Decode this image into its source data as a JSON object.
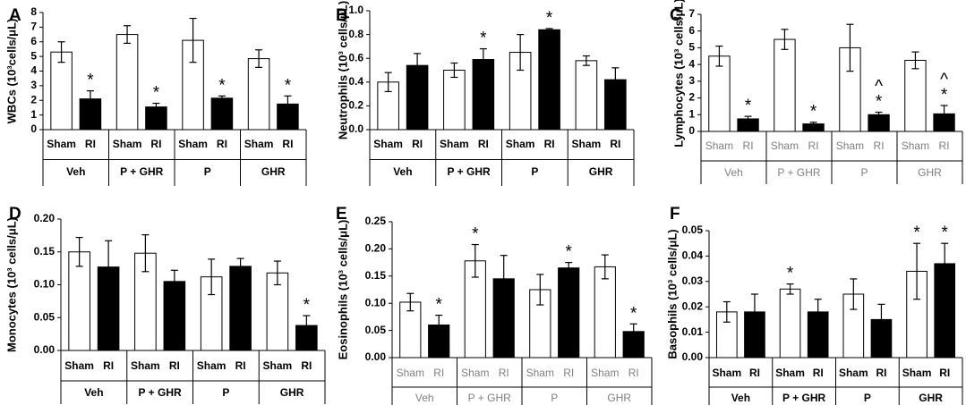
{
  "colors": {
    "sham": "#ffffff",
    "ri": "#000000",
    "stroke": "#000000",
    "grey_text": "#7f7f7f"
  },
  "chart_data": [
    {
      "panel": "A",
      "type": "bar",
      "ylabel": "WBCs (10³cells/μL)",
      "ylim": [
        0,
        8
      ],
      "yticks": [
        "0",
        "1",
        "2",
        "3",
        "4",
        "5",
        "6",
        "7",
        "8"
      ],
      "groups": [
        "Veh",
        "P + GHR",
        "P",
        "GHR"
      ],
      "subcategories": [
        "Sham",
        "RI"
      ],
      "series": [
        {
          "name": "Sham",
          "values": [
            5.3,
            6.5,
            6.1,
            4.85
          ],
          "errors": [
            0.7,
            0.6,
            1.5,
            0.6
          ],
          "sig": [
            "",
            "",
            "",
            ""
          ]
        },
        {
          "name": "RI",
          "values": [
            2.1,
            1.55,
            2.15,
            1.75
          ],
          "errors": [
            0.55,
            0.25,
            0.15,
            0.55
          ],
          "sig": [
            "*",
            "*",
            "*",
            "*"
          ]
        }
      ]
    },
    {
      "panel": "B",
      "type": "bar",
      "ylabel": "Neutrophils (10³ cells/μL)",
      "ylim": [
        0,
        1.0
      ],
      "yticks": [
        "0.0",
        "0.2",
        "0.4",
        "0.6",
        "0.8",
        "1.0"
      ],
      "groups": [
        "Veh",
        "P + GHR",
        "P",
        "GHR"
      ],
      "subcategories": [
        "Sham",
        "RI"
      ],
      "series": [
        {
          "name": "Sham",
          "values": [
            0.4,
            0.5,
            0.65,
            0.58
          ],
          "errors": [
            0.08,
            0.06,
            0.15,
            0.04
          ],
          "sig": [
            "",
            "",
            "",
            ""
          ]
        },
        {
          "name": "RI",
          "values": [
            0.54,
            0.59,
            0.84,
            0.42
          ],
          "errors": [
            0.1,
            0.09,
            0.01,
            0.1
          ],
          "sig": [
            "",
            "*",
            "*",
            ""
          ]
        }
      ]
    },
    {
      "panel": "C",
      "type": "bar",
      "ylabel": "Lymphocytes (10³ cells/μL)",
      "ylim": [
        0,
        7
      ],
      "yticks": [
        "0",
        "1",
        "2",
        "3",
        "4",
        "5",
        "6",
        "7"
      ],
      "groups": [
        "Veh",
        "P + GHR",
        "P",
        "GHR"
      ],
      "subcategories": [
        "Sham",
        "RI"
      ],
      "series": [
        {
          "name": "Sham",
          "values": [
            4.5,
            5.5,
            5.0,
            4.25
          ],
          "errors": [
            0.6,
            0.6,
            1.4,
            0.5
          ],
          "sig": [
            "",
            "",
            "",
            ""
          ]
        },
        {
          "name": "RI",
          "values": [
            0.75,
            0.45,
            1.0,
            1.05
          ],
          "errors": [
            0.15,
            0.1,
            0.15,
            0.5
          ],
          "sig": [
            "*",
            "*",
            "^\n*",
            "^\n*"
          ]
        }
      ]
    },
    {
      "panel": "D",
      "type": "bar",
      "ylabel": "Monocytes (10³ cells/μL)",
      "ylim": [
        0,
        0.2
      ],
      "yticks": [
        "0.00",
        "0.05",
        "0.10",
        "0.15",
        "0.20"
      ],
      "groups": [
        "Veh",
        "P + GHR",
        "P",
        "GHR"
      ],
      "subcategories": [
        "Sham",
        "RI"
      ],
      "series": [
        {
          "name": "Sham",
          "values": [
            0.15,
            0.148,
            0.112,
            0.118
          ],
          "errors": [
            0.022,
            0.028,
            0.027,
            0.018
          ],
          "sig": [
            "",
            "",
            "",
            ""
          ]
        },
        {
          "name": "RI",
          "values": [
            0.127,
            0.105,
            0.128,
            0.038
          ],
          "errors": [
            0.04,
            0.017,
            0.012,
            0.015
          ],
          "sig": [
            "",
            "",
            "",
            "*"
          ]
        }
      ]
    },
    {
      "panel": "E",
      "type": "bar",
      "ylabel": "Eosinophils (10³ cells/μL)",
      "ylim": [
        0,
        0.25
      ],
      "yticks": [
        "0.00",
        "0.05",
        "0.10",
        "0.15",
        "0.20",
        "0.25"
      ],
      "groups": [
        "Veh",
        "P + GHR",
        "P",
        "GHR"
      ],
      "subcategories": [
        "Sham",
        "RI"
      ],
      "series": [
        {
          "name": "Sham",
          "values": [
            0.102,
            0.178,
            0.125,
            0.167
          ],
          "errors": [
            0.016,
            0.03,
            0.028,
            0.022
          ],
          "sig": [
            "",
            "*",
            "",
            ""
          ]
        },
        {
          "name": "RI",
          "values": [
            0.06,
            0.145,
            0.165,
            0.048
          ],
          "errors": [
            0.018,
            0.043,
            0.01,
            0.014
          ],
          "sig": [
            "*",
            "",
            "*",
            "*"
          ]
        }
      ]
    },
    {
      "panel": "F",
      "type": "bar",
      "ylabel": "Basophils (10³ cells/μL)",
      "ylim": [
        0,
        0.05
      ],
      "yticks": [
        "0.00",
        "0.01",
        "0.02",
        "0.03",
        "0.04",
        "0.05"
      ],
      "groups": [
        "Veh",
        "P + GHR",
        "P",
        "GHR"
      ],
      "subcategories": [
        "Sham",
        "RI"
      ],
      "series": [
        {
          "name": "Sham",
          "values": [
            0.018,
            0.027,
            0.025,
            0.034
          ],
          "errors": [
            0.004,
            0.002,
            0.006,
            0.011
          ],
          "sig": [
            "",
            "*",
            "",
            "*"
          ]
        },
        {
          "name": "RI",
          "values": [
            0.018,
            0.018,
            0.015,
            0.037
          ],
          "errors": [
            0.007,
            0.005,
            0.006,
            0.008
          ],
          "sig": [
            "",
            "",
            "",
            "*"
          ]
        }
      ]
    }
  ]
}
